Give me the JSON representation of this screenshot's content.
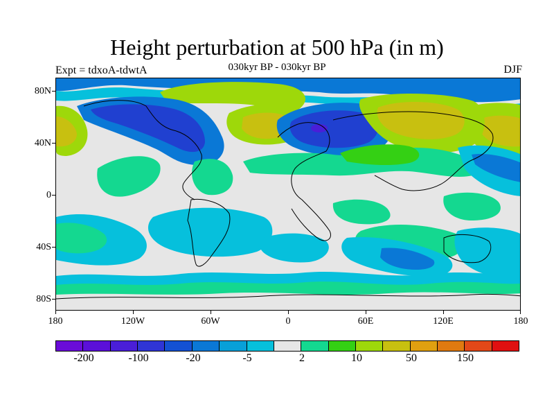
{
  "title": "Height perturbation at 500 hPa (in m)",
  "subtitle": "030kyr BP - 030kyr BP",
  "left_label": "Expt = tdxoA-tdwtA",
  "right_label": "DJF",
  "lat_labels": [
    "80N",
    "40N",
    "0",
    "40S",
    "80S"
  ],
  "lon_labels": [
    "180",
    "120W",
    "60W",
    "0",
    "60E",
    "120E",
    "180"
  ],
  "colorbar": {
    "colors": [
      "#6a0cd8",
      "#5b10d9",
      "#4a1ed8",
      "#2f35d6",
      "#1451d3",
      "#0a78d6",
      "#08a0d8",
      "#06c0dc",
      "#e6e6e6",
      "#14d890",
      "#34d014",
      "#9ed80a",
      "#c8c010",
      "#e0a010",
      "#e07a10",
      "#e24818",
      "#e01010"
    ],
    "labels": [
      "-200",
      "-100",
      "-20",
      "-5",
      "2",
      "10",
      "50",
      "150"
    ]
  },
  "legend_colors": {
    "dark_blue": "#2040d0",
    "mid_blue": "#0a78d6",
    "cyan": "#06c0dc",
    "green": "#14d890",
    "lime": "#9ed80a",
    "yellow": "#c8c010",
    "orange": "#e0a010",
    "neutral": "#e6e6e6"
  }
}
